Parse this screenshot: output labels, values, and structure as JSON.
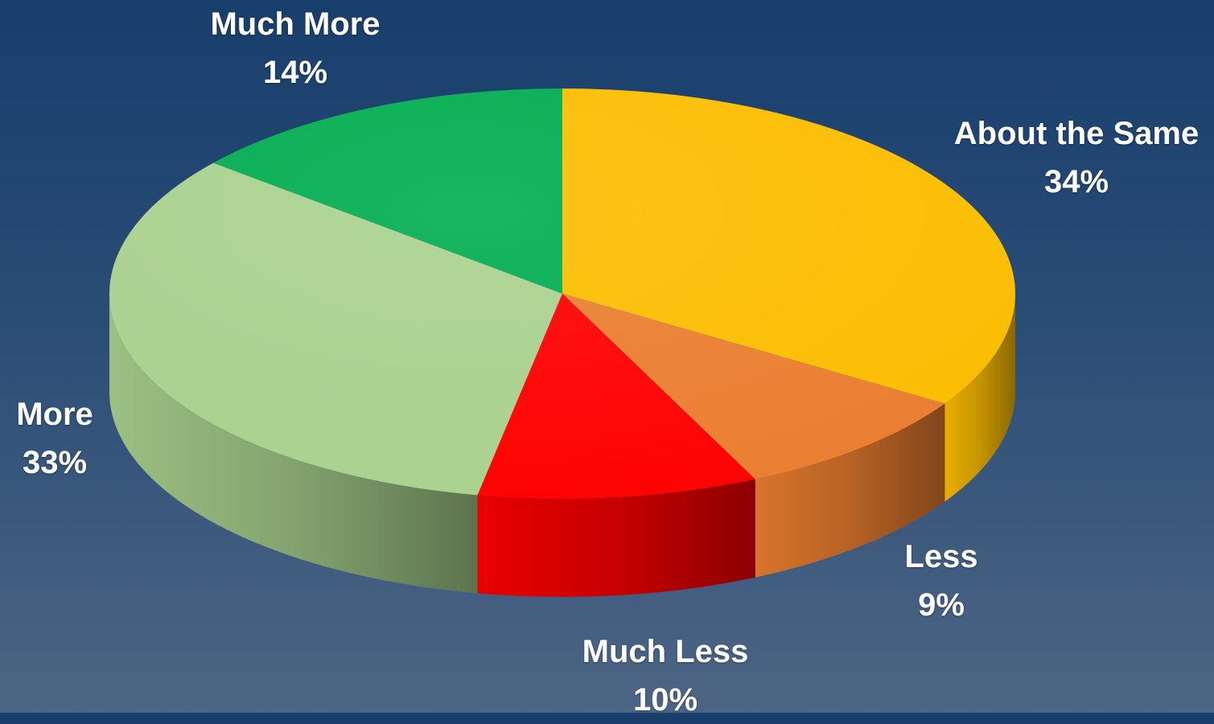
{
  "chart_data": {
    "type": "pie",
    "title": "",
    "slices": [
      {
        "label": "About the Same",
        "value": 34,
        "value_label": "34%",
        "color": "#fcbd00"
      },
      {
        "label": "Less",
        "value": 9,
        "value_label": "9%",
        "color": "#ea7e30"
      },
      {
        "label": "Much Less",
        "value": 10,
        "value_label": "10%",
        "color": "#fe0000"
      },
      {
        "label": "More",
        "value": 33,
        "value_label": "33%",
        "color": "#a9d18e"
      },
      {
        "label": "Much More",
        "value": 14,
        "value_label": "14%",
        "color": "#00ac4f"
      }
    ],
    "style": "3d-pie",
    "start": "top",
    "direction": "clockwise",
    "legend": "none",
    "data_labels": "outside"
  }
}
